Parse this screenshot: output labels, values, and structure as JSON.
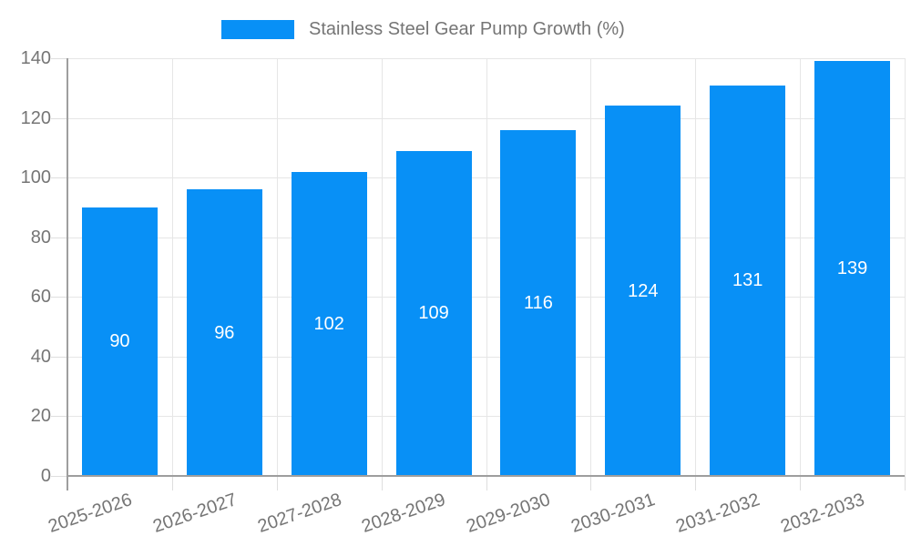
{
  "legend": {
    "label": "Stainless Steel Gear Pump Growth (%)"
  },
  "colors": {
    "bar": "#0890f6",
    "axis_text": "#757575",
    "grid": "#e6e6e6",
    "tick": "#dedede",
    "axis_line": "#9e9e9e",
    "bar_label_text": "#ffffff",
    "background": "#ffffff"
  },
  "chart_data": {
    "type": "bar",
    "title": "Stainless Steel Gear Pump Growth (%)",
    "categories": [
      "2025-2026",
      "2026-2027",
      "2027-2028",
      "2028-2029",
      "2029-2030",
      "2030-2031",
      "2031-2032",
      "2032-2033"
    ],
    "values": [
      90,
      96,
      102,
      109,
      116,
      124,
      131,
      139
    ],
    "xlabel": "",
    "ylabel": "",
    "ylim": [
      0,
      140
    ],
    "yticks": [
      0,
      20,
      40,
      60,
      80,
      100,
      120,
      140
    ],
    "grid": true,
    "bar_value_labels": true,
    "legend_position": "top-center"
  }
}
